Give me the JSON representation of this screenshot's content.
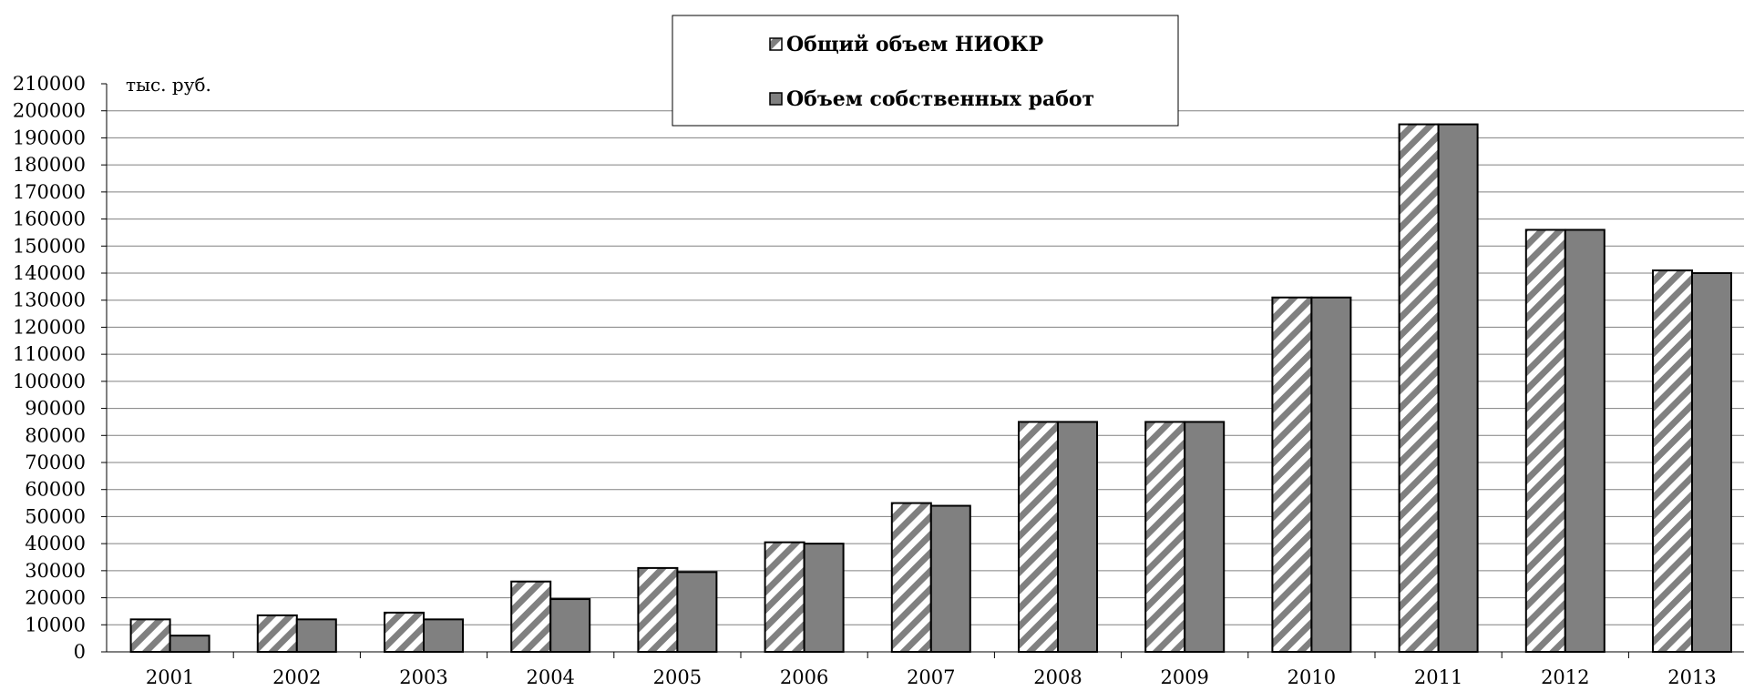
{
  "chart_data": {
    "type": "bar",
    "categories": [
      "2001",
      "2002",
      "2003",
      "2004",
      "2005",
      "2006",
      "2007",
      "2008",
      "2009",
      "2010",
      "2011",
      "2012",
      "2013"
    ],
    "series": [
      {
        "name": "Общий объем НИОКР",
        "values": [
          12000,
          13500,
          14500,
          26000,
          31000,
          40500,
          55000,
          85000,
          85000,
          131000,
          195000,
          156000,
          141000
        ],
        "pattern": "diagonal-hatch",
        "color": "#808080"
      },
      {
        "name": "Объем собственных работ",
        "values": [
          6000,
          12000,
          12000,
          19500,
          29500,
          40000,
          54000,
          85000,
          85000,
          131000,
          195000,
          156000,
          140000
        ],
        "pattern": "solid",
        "color": "#808080"
      }
    ],
    "title": "",
    "xlabel": "",
    "ylabel": "тыс. руб.",
    "ylim": [
      0,
      210000
    ],
    "ytick_step": 10000,
    "yticks": [
      "0",
      "10000",
      "20000",
      "30000",
      "40000",
      "50000",
      "60000",
      "70000",
      "80000",
      "90000",
      "100000",
      "110000",
      "120000",
      "130000",
      "140000",
      "150000",
      "160000",
      "170000",
      "180000",
      "190000",
      "200000",
      "210000"
    ],
    "grid": true,
    "legend_position": "top-center"
  }
}
